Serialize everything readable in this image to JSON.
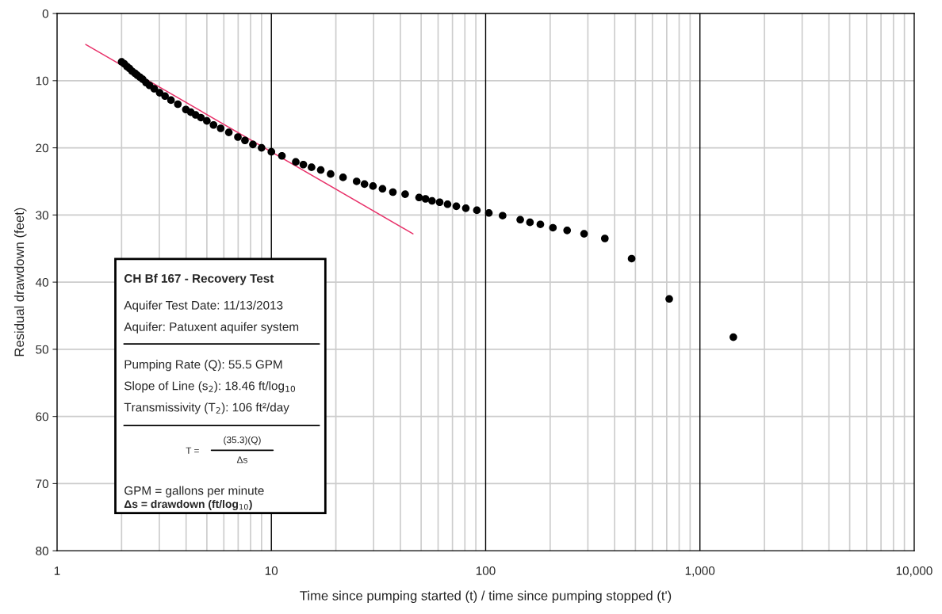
{
  "chart_data": {
    "type": "scatter",
    "xlabel": "Time since pumping started (t) / time since pumping stopped (t')",
    "ylabel": "Residual drawdown (feet)",
    "log": "x",
    "grid": true,
    "xlim": [
      1,
      10000
    ],
    "ylim": [
      80,
      0
    ],
    "xticks": [
      1,
      {
        "value": 2,
        "label": null
      },
      {
        "value": 3,
        "label": null
      },
      {
        "value": 4,
        "label": null
      },
      {
        "value": 5,
        "label": null
      },
      {
        "value": 6,
        "label": null
      },
      {
        "value": 7,
        "label": null
      },
      {
        "value": 8,
        "label": null
      },
      {
        "value": 9,
        "label": null
      },
      10,
      {
        "value": 20,
        "label": null
      },
      {
        "value": 30,
        "label": null
      },
      {
        "value": 40,
        "label": null
      },
      {
        "value": 50,
        "label": null
      },
      {
        "value": 60,
        "label": null
      },
      {
        "value": 70,
        "label": null
      },
      {
        "value": 80,
        "label": null
      },
      {
        "value": 90,
        "label": null
      },
      100,
      {
        "value": 200,
        "label": null
      },
      {
        "value": 300,
        "label": null
      },
      {
        "value": 400,
        "label": null
      },
      {
        "value": 500,
        "label": null
      },
      {
        "value": 600,
        "label": null
      },
      {
        "value": 700,
        "label": null
      },
      {
        "value": 800,
        "label": null
      },
      {
        "value": 900,
        "label": null
      },
      {
        "value": 1000,
        "label": "1,000"
      },
      {
        "value": 2000,
        "label": null
      },
      {
        "value": 3000,
        "label": null
      },
      {
        "value": 4000,
        "label": null
      },
      {
        "value": 5000,
        "label": null
      },
      {
        "value": 6000,
        "label": null
      },
      {
        "value": 7000,
        "label": null
      },
      {
        "value": 8000,
        "label": null
      },
      {
        "value": 9000,
        "label": null
      },
      {
        "value": 10000,
        "label": "10,000"
      }
    ],
    "yticks": [
      0,
      10,
      20,
      30,
      40,
      50,
      60,
      70,
      80
    ],
    "series": [
      {
        "marker": "circle",
        "color": "#000000",
        "x": [
          2.0,
          2.06,
          2.12,
          2.18,
          2.24,
          2.31,
          2.37,
          2.44,
          2.51,
          2.6,
          2.7,
          2.84,
          3.01,
          3.19,
          3.4,
          3.66,
          3.99,
          4.21,
          4.43,
          4.69,
          5.0,
          5.37,
          5.8,
          6.33,
          6.98,
          7.53,
          8.2,
          9.0,
          10.0,
          11.2,
          13.0,
          14.1,
          15.4,
          17.0,
          18.9,
          21.6,
          25.0,
          27.2,
          29.8,
          33.0,
          36.9,
          42.1,
          48.9,
          52.4,
          56.2,
          61.0,
          66.4,
          73.0,
          80.8,
          91.0,
          103.5,
          120,
          145,
          161,
          180,
          206,
          240,
          288,
          360,
          480,
          719,
          1432
        ],
        "values": [
          7.2,
          7.5,
          7.9,
          8.2,
          8.6,
          8.9,
          9.2,
          9.5,
          9.8,
          10.3,
          10.7,
          11.2,
          11.8,
          12.3,
          12.9,
          13.5,
          14.3,
          14.7,
          15.1,
          15.5,
          16.0,
          16.6,
          17.1,
          17.7,
          18.4,
          18.9,
          19.5,
          20.0,
          20.6,
          21.2,
          22.1,
          22.5,
          22.9,
          23.3,
          23.9,
          24.4,
          25.0,
          25.4,
          25.7,
          26.1,
          26.6,
          26.9,
          27.4,
          27.6,
          27.9,
          28.1,
          28.4,
          28.7,
          29.0,
          29.3,
          29.7,
          30.1,
          30.7,
          31.1,
          31.4,
          31.9,
          32.3,
          32.8,
          33.5,
          36.5,
          42.5,
          48.2
        ]
      },
      {
        "type": "line",
        "marker": "none",
        "color": "#e8326a",
        "x": [
          1.36,
          45.8
        ],
        "values": [
          4.6,
          32.8
        ]
      }
    ],
    "annotations": [
      "CH Bf 167 - Recovery Test",
      "Aquifer Test Date: 11/13/2013",
      "Aquifer: Patuxent aquifer system",
      "Pumping Rate (Q): 55.5 GPM",
      "Slope of Line (s$_{2}$): 18.46 ft/log$_{10}$",
      "Transmissivity (T$_{2}$): 106 ft²/day",
      "T =",
      "(35.3)(Q)",
      "Δs",
      "GPM = gallons per minute",
      "Δs = drawdown (ft/log$_{10}$)"
    ]
  }
}
